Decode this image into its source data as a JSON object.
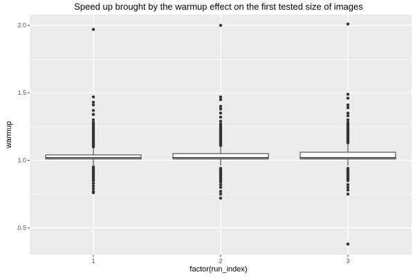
{
  "chart_data": {
    "type": "boxplot",
    "title": "Speed up brought by the warmup effect on the first tested size of images",
    "xlabel": "factor(run_index)",
    "ylabel": "warmup",
    "categories": [
      "1",
      "2",
      "3"
    ],
    "ylim": [
      0.3,
      2.08
    ],
    "yticks": [
      0.5,
      1.0,
      1.5,
      2.0
    ],
    "ytick_labels": [
      "0.5",
      "1.0",
      "1.5",
      "2.0"
    ],
    "grid": true,
    "colors": {
      "panel_background": "#ebebeb",
      "grid_major": "#ffffff",
      "box_fill": "#ffffff",
      "box_stroke": "#333333",
      "outlier_fill": "#333333"
    },
    "series": [
      {
        "category": "1",
        "q1": 1.01,
        "median": 1.02,
        "q3": 1.04,
        "whisker_low": 0.96,
        "whisker_high": 1.09,
        "outliers": [
          1.97,
          1.47,
          1.43,
          1.41,
          1.37,
          1.34,
          1.3,
          1.28,
          1.27,
          1.26,
          1.25,
          1.24,
          1.23,
          1.22,
          1.21,
          1.2,
          1.19,
          1.18,
          1.17,
          1.16,
          1.15,
          1.14,
          1.13,
          1.12,
          1.11,
          1.1,
          0.95,
          0.94,
          0.93,
          0.92,
          0.91,
          0.9,
          0.89,
          0.88,
          0.87,
          0.86,
          0.85,
          0.83,
          0.81,
          0.79,
          0.77,
          0.76
        ]
      },
      {
        "category": "2",
        "q1": 1.01,
        "median": 1.02,
        "q3": 1.05,
        "whisker_low": 0.96,
        "whisker_high": 1.1,
        "outliers": [
          2.0,
          1.47,
          1.45,
          1.4,
          1.38,
          1.35,
          1.32,
          1.29,
          1.27,
          1.26,
          1.25,
          1.24,
          1.23,
          1.22,
          1.21,
          1.2,
          1.19,
          1.18,
          1.17,
          1.16,
          1.15,
          1.14,
          1.13,
          1.12,
          1.11,
          0.94,
          0.93,
          0.92,
          0.91,
          0.9,
          0.89,
          0.88,
          0.87,
          0.86,
          0.85,
          0.84,
          0.82,
          0.8,
          0.77,
          0.75,
          0.72
        ]
      },
      {
        "category": "3",
        "q1": 1.01,
        "median": 1.02,
        "q3": 1.06,
        "whisker_low": 0.96,
        "whisker_high": 1.12,
        "outliers": [
          2.01,
          1.49,
          1.46,
          1.41,
          1.39,
          1.35,
          1.33,
          1.3,
          1.28,
          1.27,
          1.26,
          1.25,
          1.24,
          1.23,
          1.22,
          1.21,
          1.2,
          1.19,
          1.18,
          1.17,
          1.16,
          1.15,
          1.14,
          1.13,
          0.94,
          0.93,
          0.92,
          0.91,
          0.9,
          0.89,
          0.88,
          0.87,
          0.86,
          0.85,
          0.82,
          0.8,
          0.78,
          0.75,
          0.38
        ]
      }
    ]
  }
}
